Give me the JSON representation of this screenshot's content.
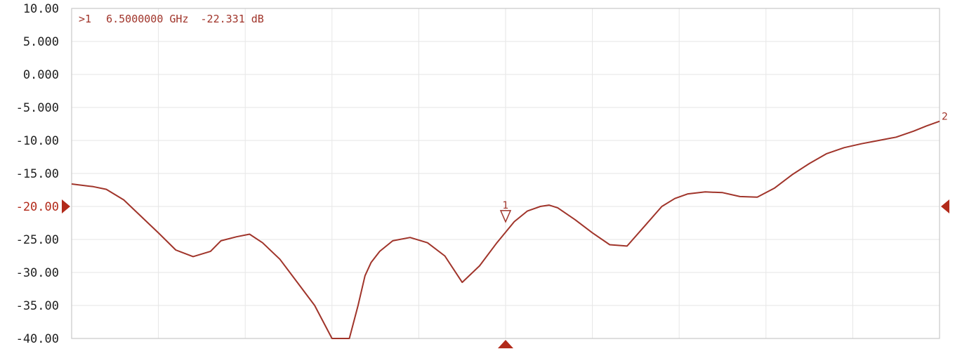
{
  "colors": {
    "trace": "#a0342a",
    "grid": "#e6e6e6",
    "frame": "#c8c8c8",
    "ref_marker": "#b22a1a",
    "tick_text": "#222222"
  },
  "chart_data": {
    "type": "line",
    "title": "",
    "xlabel": "",
    "ylabel": "",
    "xlim": [
      0,
      10
    ],
    "ylim": [
      -40,
      10
    ],
    "y_divisions": 10,
    "x_divisions": 10,
    "grid": true,
    "y_tick_labels": [
      "10.00",
      "5.000",
      "0.000",
      "-5.000",
      "-10.00",
      "-15.00",
      "-20.00",
      "-25.00",
      "-30.00",
      "-35.00",
      "-40.00"
    ],
    "reference_level": {
      "value": -20,
      "label": "-20.00"
    },
    "series": [
      {
        "x": [
          0.0,
          0.25,
          0.4,
          0.6,
          0.8,
          1.0,
          1.2,
          1.4,
          1.6,
          1.72,
          1.9,
          2.05,
          2.2,
          2.4,
          2.6,
          2.8,
          3.0,
          3.2,
          3.3,
          3.38,
          3.45,
          3.55,
          3.7,
          3.9,
          4.1,
          4.3,
          4.5,
          4.7,
          4.9,
          5.1,
          5.25,
          5.4,
          5.5,
          5.6,
          5.8,
          6.0,
          6.2,
          6.4,
          6.6,
          6.8,
          6.95,
          7.1,
          7.3,
          7.5,
          7.7,
          7.9,
          8.1,
          8.3,
          8.5,
          8.7,
          8.9,
          9.1,
          9.3,
          9.5,
          9.7,
          9.85,
          10.0
        ],
        "y": [
          -16.6,
          -17.0,
          -17.4,
          -19.0,
          -21.5,
          -24.0,
          -26.6,
          -27.6,
          -26.8,
          -25.2,
          -24.6,
          -24.2,
          -25.5,
          -28.0,
          -31.5,
          -35.0,
          -41.0,
          -41.0,
          -35.0,
          -30.5,
          -28.5,
          -26.8,
          -25.2,
          -24.7,
          -25.5,
          -27.5,
          -31.5,
          -29.0,
          -25.5,
          -22.3,
          -20.7,
          -20.0,
          -19.8,
          -20.2,
          -22.0,
          -24.0,
          -25.8,
          -26.0,
          -23.0,
          -20.0,
          -18.8,
          -18.1,
          -17.8,
          -17.9,
          -18.5,
          -18.6,
          -17.2,
          -15.2,
          -13.5,
          -12.0,
          -11.1,
          -10.5,
          -10.0,
          -9.5,
          -8.6,
          -7.8,
          -7.1
        ]
      }
    ],
    "markers": [
      {
        "id": "1",
        "x": 5.0,
        "y": -22.331,
        "style": "triangle-down"
      },
      {
        "id": "2",
        "x": 10.0,
        "y": -7.1,
        "style": "label"
      }
    ],
    "active_marker_readout": {
      "prefix": ">1",
      "frequency": "6.5000000 GHz",
      "value": "-22.331 dB"
    }
  }
}
